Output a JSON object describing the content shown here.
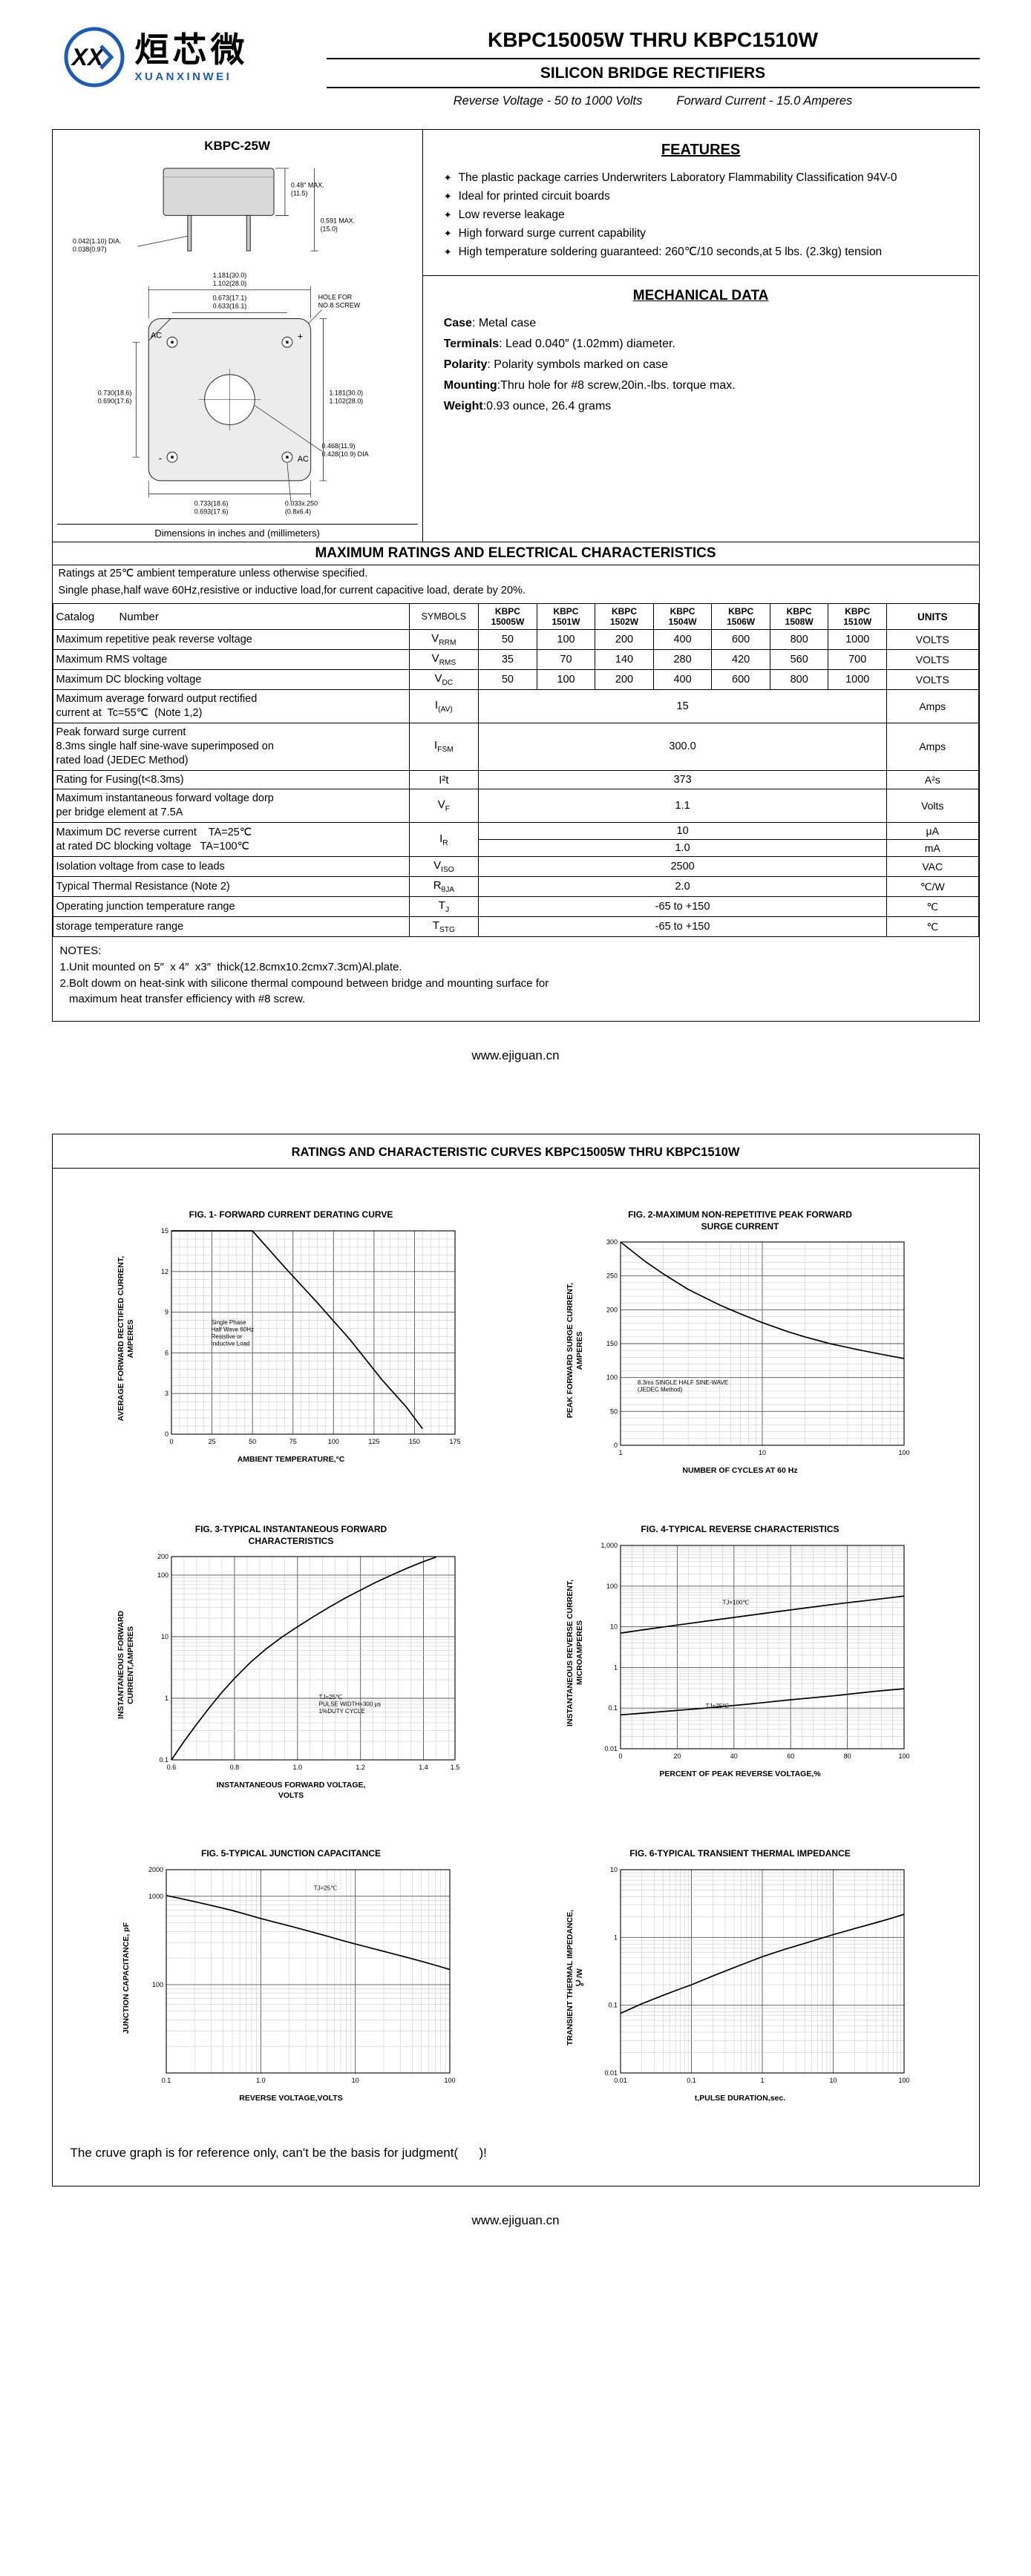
{
  "header": {
    "brand_cjk": "烜芯微",
    "brand_latin": "XUANXINWEI",
    "part_range": "KBPC15005W THRU KBPC1510W",
    "subtitle": "SILICON BRIDGE RECTIFIERS",
    "voltage": "Reverse Voltage - 50 to 1000 Volts",
    "current": "Forward Current - 15.0 Amperes"
  },
  "package": {
    "name": "KBPC-25W",
    "caption": "Dimensions in inches and (millimeters)",
    "dims": {
      "body_h_in": "0.48″ MAX.",
      "body_h_mm": "(11.5)",
      "total_h_in": "0.591 MAX.",
      "total_h_mm": "(15.0)",
      "pin_dia_1": "0.042(1.10) DIA.",
      "pin_dia_2": "0.038(0.97)",
      "top_outer_1": "1.181(30.0)",
      "top_outer_2": "1.102(28.0)",
      "top_inner_1": "0.673(17.1)",
      "top_inner_2": "0.633(16.1)",
      "hole_note_1": "HOLE FOR",
      "hole_note_2": "NO.8 SCREW",
      "right_outer_1": "1.181(30.0)",
      "right_outer_2": "1.102(28.0)",
      "hole_dia_1": "0.468(11.9)",
      "hole_dia_2": "0.428(10.9) DIA",
      "left_1": "0.730(18.6)",
      "left_2": "0.690(17.6)",
      "bottom_1": "0.733(18.6)",
      "bottom_2": "0.693(17.6)",
      "tab_1": "0.033x.250",
      "tab_2": "(0.8x6.4)",
      "term_tl": "AC",
      "term_tr": "+",
      "term_bl": "-",
      "term_br": "AC"
    }
  },
  "features": {
    "title": "FEATURES",
    "bullet": "✦",
    "items": [
      "The plastic package carries Underwriters Laboratory Flammability Classification 94V-0",
      "Ideal for printed circuit boards",
      "Low reverse leakage",
      "High forward surge current capability",
      "High temperature soldering guaranteed: 260℃/10 seconds,at 5 lbs. (2.3kg) tension"
    ]
  },
  "mechanical": {
    "title": "MECHANICAL DATA",
    "lines": [
      {
        "label": "Case",
        "text": ": Metal case"
      },
      {
        "label": "Terminals",
        "text": ": Lead 0.040″  (1.02mm) diameter."
      },
      {
        "label": "Polarity",
        "text": ": Polarity symbols marked on case"
      },
      {
        "label": "Mounting",
        "text": ":Thru hole for #8 screw,20in.-lbs. torque max."
      },
      {
        "label": "Weight",
        "text": ":0.93 ounce, 26.4 grams"
      }
    ]
  },
  "ratings": {
    "title": "MAXIMUM RATINGS AND ELECTRICAL CHARACTERISTICS",
    "intro1": "Ratings at 25℃ ambient temperature unless otherwise specified.",
    "intro2": "Single phase,half wave 60Hz,resistive or inductive load,for current capacitive load, derate by 20%."
  },
  "table": {
    "catalog_label": "Catalog        Number",
    "symbols_label": "SYMBOLS",
    "units_label": "UNITS",
    "device_columns": [
      "KBPC\n15005W",
      "KBPC\n1501W",
      "KBPC\n1502W",
      "KBPC\n1504W",
      "KBPC\n1506W",
      "KBPC\n1508W",
      "KBPC\n1510W"
    ],
    "rows": [
      {
        "param": "Maximum repetitive peak reverse voltage",
        "sym": "V",
        "sub": "RRM",
        "values": [
          "50",
          "100",
          "200",
          "400",
          "600",
          "800",
          "1000"
        ],
        "units": "VOLTS"
      },
      {
        "param": "Maximum RMS voltage",
        "sym": "V",
        "sub": "RMS",
        "values": [
          "35",
          "70",
          "140",
          "280",
          "420",
          "560",
          "700"
        ],
        "units": "VOLTS"
      },
      {
        "param": "Maximum DC blocking voltage",
        "sym": "V",
        "sub": "DC",
        "values": [
          "50",
          "100",
          "200",
          "400",
          "600",
          "800",
          "1000"
        ],
        "units": "VOLTS"
      },
      {
        "param": "Maximum average forward output rectified\ncurrent at  Tc=55℃  (Note 1,2)",
        "sym": "I",
        "sub": "(AV)",
        "span": "15",
        "units": "Amps"
      },
      {
        "param": "Peak forward surge current\n8.3ms single half sine-wave superimposed on\nrated load (JEDEC Method)",
        "sym": "I",
        "sub": "FSM",
        "span": "300.0",
        "units": "Amps"
      },
      {
        "param": "Rating for Fusing(t<8.3ms)",
        "sym": "I²t",
        "sub": "",
        "span": "373",
        "units": "A²s"
      },
      {
        "param": "Maximum instantaneous forward voltage dorp\nper bridge element at 7.5A",
        "sym": "V",
        "sub": "F",
        "span": "1.1",
        "units": "Volts"
      },
      {
        "param": "Maximum DC reverse current    TA=25℃\nat rated DC blocking voltage   TA=100℃",
        "sym": "I",
        "sub": "R",
        "span2": [
          "10",
          "1.0"
        ],
        "units2": [
          "μA",
          "mA"
        ]
      },
      {
        "param": "Isolation voltage from case to leads",
        "sym": "V",
        "sub": "ISO",
        "span": "2500",
        "units": "VAC"
      },
      {
        "param": "Typical Thermal Resistance (Note 2)",
        "sym": "R",
        "sub": "θJA",
        "span": "2.0",
        "units": "℃/W"
      },
      {
        "param": "Operating junction temperature range",
        "sym": "T",
        "sub": "J",
        "span": "-65 to +150",
        "units": "℃"
      },
      {
        "param": "storage temperature range",
        "sym": "T",
        "sub": "STG",
        "span": "-65 to +150",
        "units": "℃"
      }
    ]
  },
  "notes": {
    "title": "NOTES:",
    "items": [
      "1.Unit mounted on 5″  x 4″  x3″  thick(12.8cmx10.2cmx7.3cm)Al.plate.",
      "2.Bolt dowm on heat-sink with silicone thermal compound between bridge and mounting surface for\n   maximum heat transfer efficiency with #8 screw."
    ]
  },
  "footer": {
    "url": "www.ejiguan.cn"
  },
  "curves": {
    "title": "RATINGS AND CHARACTERISTIC CURVES KBPC15005W THRU KBPC1510W",
    "disclaimer": "The cruve graph is for reference only, can't be the basis for judgment(      )!"
  },
  "chart_data": [
    {
      "type": "line",
      "title": "FIG. 1- FORWARD CURRENT DERATING CURVE",
      "ylabel": "AVERAGE FORWARD RECTIFIED CURRENT,\nAMPERES",
      "xlabel": "AMBIENT TEMPERATURE,°C",
      "xscale": "linear",
      "yscale": "linear",
      "xmin": 0,
      "xmax": 175,
      "ymin": 0,
      "ymax": 15,
      "xticks": [
        0,
        25,
        50,
        75,
        100,
        125,
        150,
        175
      ],
      "xtick_labels": [
        "0",
        "25",
        "50",
        "75",
        "100",
        "125",
        "150",
        "175"
      ],
      "yticks": [
        0,
        3,
        6,
        9,
        12,
        15
      ],
      "ytick_labels": [
        "0",
        "3",
        "6",
        "9",
        "12",
        "15"
      ],
      "xminor": 5,
      "yminor": 5,
      "series": [
        {
          "name": "derating",
          "points": [
            [
              0,
              15
            ],
            [
              50,
              15
            ],
            [
              70,
              12.3
            ],
            [
              90,
              9.7
            ],
            [
              110,
              7.0
            ],
            [
              130,
              4.0
            ],
            [
              145,
              2.0
            ],
            [
              155,
              0.4
            ]
          ]
        }
      ],
      "annotations": [
        {
          "text": "Single Phase\nHalf Wave 60Hz\nResistive or\nInductive Load",
          "fx": 0.14,
          "fy": 0.46
        }
      ]
    },
    {
      "type": "line",
      "title": "FIG. 2-MAXIMUM NON-REPETITIVE PEAK FORWARD\nSURGE CURRENT",
      "ylabel": "PEAK  FORWARD SURGE CURRENT,\nAMPERES",
      "xlabel": "NUMBER OF CYCLES AT 60 Hz",
      "xscale": "log",
      "yscale": "linear",
      "xmin": 1,
      "xmax": 100,
      "ymin": 0,
      "ymax": 300,
      "xticks": [
        1,
        10,
        100
      ],
      "xtick_labels": [
        "1",
        "10",
        "100"
      ],
      "yticks": [
        0,
        50,
        100,
        150,
        200,
        250,
        300
      ],
      "ytick_labels": [
        "0",
        "50",
        "100",
        "150",
        "200",
        "250",
        "300"
      ],
      "yminor": 5,
      "series": [
        {
          "name": "surge",
          "points": [
            [
              1,
              300
            ],
            [
              1.5,
              271
            ],
            [
              2,
              253
            ],
            [
              3,
              230
            ],
            [
              5,
              207
            ],
            [
              7,
              194
            ],
            [
              10,
              181
            ],
            [
              15,
              168
            ],
            [
              20,
              160
            ],
            [
              30,
              150
            ],
            [
              50,
              140
            ],
            [
              70,
              134
            ],
            [
              100,
              128
            ]
          ]
        }
      ],
      "annotations": [
        {
          "text": "8.3ms SINGLE HALF SINE-WAVE\n(JEDEC Method)",
          "fx": 0.06,
          "fy": 0.7
        }
      ]
    },
    {
      "type": "line",
      "title": "FIG. 3-TYPICAL INSTANTANEOUS FORWARD\nCHARACTERISTICS",
      "ylabel": "INSTANTANEOUS FORWARD\nCURRENT,AMPERES",
      "xlabel": "INSTANTANEOUS FORWARD VOLTAGE,\nVOLTS",
      "xscale": "linear",
      "yscale": "log",
      "xmin": 0.6,
      "xmax": 1.5,
      "ymin": 0.1,
      "ymax": 200,
      "xticks": [
        0.6,
        0.8,
        1.0,
        1.2,
        1.4,
        1.5
      ],
      "xtick_labels": [
        "0.6",
        "0.8",
        "1.0",
        "1.2",
        "1.4",
        "1.5"
      ],
      "yticks": [
        0.1,
        1,
        10,
        100,
        200
      ],
      "ytick_labels": [
        "0.1",
        "1",
        "10",
        "100",
        "200"
      ],
      "xminor": 5,
      "series": [
        {
          "name": "vf",
          "points": [
            [
              0.6,
              0.1
            ],
            [
              0.64,
              0.2
            ],
            [
              0.68,
              0.38
            ],
            [
              0.72,
              0.7
            ],
            [
              0.76,
              1.25
            ],
            [
              0.8,
              2.1
            ],
            [
              0.85,
              3.8
            ],
            [
              0.9,
              6.3
            ],
            [
              0.95,
              9.8
            ],
            [
              1.0,
              14.5
            ],
            [
              1.05,
              21
            ],
            [
              1.1,
              30
            ],
            [
              1.15,
              42
            ],
            [
              1.2,
              57
            ],
            [
              1.25,
              77
            ],
            [
              1.3,
              101
            ],
            [
              1.35,
              131
            ],
            [
              1.4,
              166
            ],
            [
              1.44,
              196
            ]
          ]
        }
      ],
      "annotations": [
        {
          "text": "TJ=25℃\nPULSE WIDTH=300 μs\n1%DUTY CYCLE",
          "fx": 0.52,
          "fy": 0.7
        }
      ]
    },
    {
      "type": "line",
      "title": "FIG. 4-TYPICAL REVERSE CHARACTERISTICS",
      "ylabel": "INSTANTANEOUS REVERSE CURRENT,\nMICROAMPERES",
      "xlabel": "PERCENT OF PEAK REVERSE VOLTAGE,%",
      "xscale": "linear",
      "yscale": "log",
      "xmin": 0,
      "xmax": 100,
      "ymin": 0.01,
      "ymax": 1000,
      "xticks": [
        0,
        20,
        40,
        60,
        80,
        100
      ],
      "xtick_labels": [
        "0",
        "20",
        "40",
        "60",
        "80",
        "100"
      ],
      "yticks": [
        0.01,
        0.1,
        1,
        10,
        100,
        1000
      ],
      "ytick_labels": [
        "0.01",
        "0.1",
        "1",
        "10",
        "100",
        "1,000"
      ],
      "xminor": 5,
      "series": [
        {
          "name": "TJ=100℃",
          "points": [
            [
              0,
              7
            ],
            [
              10,
              8.8
            ],
            [
              20,
              11
            ],
            [
              30,
              13.7
            ],
            [
              40,
              17
            ],
            [
              50,
              21
            ],
            [
              60,
              26
            ],
            [
              70,
              32
            ],
            [
              80,
              39
            ],
            [
              90,
              47
            ],
            [
              100,
              57
            ]
          ]
        },
        {
          "name": "TJ=25℃",
          "points": [
            [
              0,
              0.068
            ],
            [
              15,
              0.082
            ],
            [
              30,
              0.1
            ],
            [
              45,
              0.125
            ],
            [
              60,
              0.16
            ],
            [
              75,
              0.2
            ],
            [
              90,
              0.26
            ],
            [
              100,
              0.3
            ]
          ]
        }
      ],
      "annotations": [
        {
          "text": "TJ=100℃",
          "fx": 0.36,
          "fy": 0.29
        },
        {
          "text": "TJ=25℃",
          "fx": 0.3,
          "fy": 0.8
        }
      ]
    },
    {
      "type": "line",
      "title": "FIG. 5-TYPICAL JUNCTION CAPACITANCE",
      "ylabel": "JUNCTION CAPACITANCE, pF",
      "xlabel": "REVERSE VOLTAGE,VOLTS",
      "xscale": "log",
      "yscale": "log",
      "xmin": 0.1,
      "xmax": 100,
      "ymin": 10,
      "ymax": 2000,
      "xticks": [
        0.1,
        1.0,
        10,
        100
      ],
      "xtick_labels": [
        "0.1",
        "1.0",
        "10",
        "100"
      ],
      "yticks": [
        100,
        1000,
        2000
      ],
      "ytick_labels": [
        "100",
        "1000",
        "2000"
      ],
      "series": [
        {
          "name": "cj",
          "points": [
            [
              0.1,
              1020
            ],
            [
              0.15,
              930
            ],
            [
              0.22,
              850
            ],
            [
              0.33,
              770
            ],
            [
              0.5,
              690
            ],
            [
              0.7,
              625
            ],
            [
              1,
              560
            ],
            [
              1.5,
              500
            ],
            [
              2.2,
              450
            ],
            [
              3.3,
              400
            ],
            [
              5,
              355
            ],
            [
              7,
              320
            ],
            [
              10,
              288
            ],
            [
              15,
              258
            ],
            [
              22,
              232
            ],
            [
              33,
              207
            ],
            [
              50,
              184
            ],
            [
              70,
              166
            ],
            [
              100,
              148
            ]
          ]
        }
      ],
      "annotations": [
        {
          "text": "TJ=25℃",
          "fx": 0.52,
          "fy": 0.1
        }
      ]
    },
    {
      "type": "line",
      "title": "FIG. 6-TYPICAL TRANSIENT THERMAL IMPEDANCE",
      "ylabel": "TRANSIENT THERMAL IMPEDANCE,\n℃/W",
      "xlabel": "t,PULSE DURATION,sec.",
      "xscale": "log",
      "yscale": "log",
      "xmin": 0.01,
      "xmax": 100,
      "ymin": 0.01,
      "ymax": 10,
      "xticks": [
        0.01,
        0.1,
        1,
        10,
        100
      ],
      "xtick_labels": [
        "0.01",
        "0.1",
        "1",
        "10",
        "100"
      ],
      "yticks": [
        0.01,
        0.1,
        1,
        10
      ],
      "ytick_labels": [
        "0.01",
        "0.1",
        "1",
        "10"
      ],
      "series": [
        {
          "name": "zth",
          "points": [
            [
              0.01,
              0.076
            ],
            [
              0.02,
              0.105
            ],
            [
              0.04,
              0.14
            ],
            [
              0.07,
              0.175
            ],
            [
              0.1,
              0.2
            ],
            [
              0.2,
              0.27
            ],
            [
              0.4,
              0.36
            ],
            [
              0.7,
              0.45
            ],
            [
              1,
              0.52
            ],
            [
              2,
              0.66
            ],
            [
              4,
              0.82
            ],
            [
              7,
              0.98
            ],
            [
              10,
              1.1
            ],
            [
              20,
              1.35
            ],
            [
              40,
              1.65
            ],
            [
              70,
              1.95
            ],
            [
              100,
              2.2
            ]
          ]
        }
      ],
      "annotations": []
    }
  ]
}
